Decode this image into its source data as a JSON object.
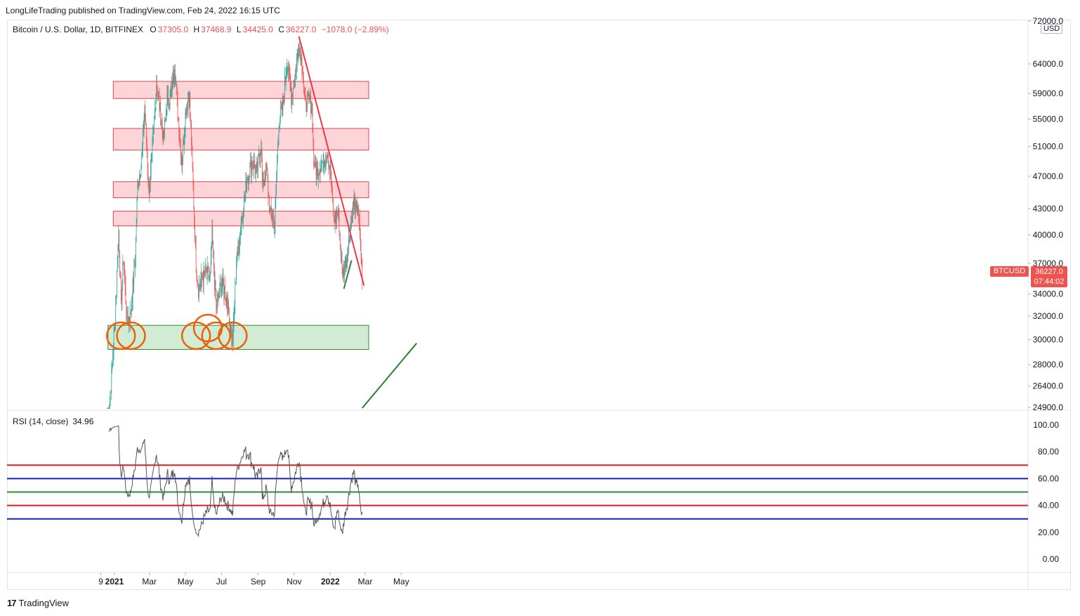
{
  "header": {
    "published": "LongLifeTrading published on TradingView.com, Feb 24, 2022 16:15 UTC"
  },
  "legend": {
    "symbol": "Bitcoin / U.S. Dollar, 1D, BITFINEX",
    "o_label": "O",
    "o": "37305.0",
    "h_label": "H",
    "h": "37468.9",
    "l_label": "L",
    "l": "34425.0",
    "c_label": "C",
    "c": "36227.0",
    "change": "−1078.0 (−2.89%)"
  },
  "currency": "USD",
  "price_badge": {
    "symbol": "BTCUSD",
    "price": "36227.0",
    "countdown": "07:44:02"
  },
  "rsi": {
    "label": "RSI (14, close)",
    "value": "34.96"
  },
  "brand": {
    "name": "TradingView",
    "logo": "17"
  },
  "colors": {
    "up": "#26a69a",
    "down": "#ef5350",
    "resistance_fill": "#fdd5d8",
    "resistance_border": "#e04452",
    "support_fill": "#d2ecd3",
    "support_border": "#3b8a3e",
    "trendline_down": "#f23645",
    "trendline_up": "#2e7d32",
    "circle": "#e8620c",
    "rsi_line": "#555555",
    "level_red": "#e61c1c",
    "level_blue": "#1622b5",
    "level_green": "#2e8b2e"
  },
  "chart_data": {
    "type": "candlestick",
    "title": "Bitcoin / U.S. Dollar, 1D, BITFINEX",
    "y_axis": {
      "scale": "log",
      "ticks": [
        "72000.0",
        "64000.0",
        "59000.0",
        "55000.0",
        "51000.0",
        "47000.0",
        "43000.0",
        "40000.0",
        "37000.0",
        "34000.0",
        "32000.0",
        "30000.0",
        "28000.0",
        "26400.0",
        "24900.0"
      ]
    },
    "x_axis": {
      "ticks": [
        "9",
        "2021",
        "Mar",
        "May",
        "Jul",
        "Sep",
        "Nov",
        "2022",
        "Mar",
        "May"
      ]
    },
    "price_path_keypoints": [
      {
        "date": "2020-12-20",
        "price": 23500
      },
      {
        "date": "2020-12-27",
        "price": 27000
      },
      {
        "date": "2021-01-03",
        "price": 33000
      },
      {
        "date": "2021-01-08",
        "price": 40500
      },
      {
        "date": "2021-01-12",
        "price": 33000
      },
      {
        "date": "2021-01-16",
        "price": 37500
      },
      {
        "date": "2021-01-22",
        "price": 31800
      },
      {
        "date": "2021-01-28",
        "price": 32000
      },
      {
        "date": "2021-02-05",
        "price": 37500
      },
      {
        "date": "2021-02-09",
        "price": 46000
      },
      {
        "date": "2021-02-16",
        "price": 49000
      },
      {
        "date": "2021-02-21",
        "price": 57000
      },
      {
        "date": "2021-02-28",
        "price": 45000
      },
      {
        "date": "2021-03-05",
        "price": 49000
      },
      {
        "date": "2021-03-13",
        "price": 61000
      },
      {
        "date": "2021-03-25",
        "price": 52000
      },
      {
        "date": "2021-04-01",
        "price": 59000
      },
      {
        "date": "2021-04-05",
        "price": 58000
      },
      {
        "date": "2021-04-13",
        "price": 63500
      },
      {
        "date": "2021-04-18",
        "price": 56000
      },
      {
        "date": "2021-04-25",
        "price": 49000
      },
      {
        "date": "2021-05-02",
        "price": 57000
      },
      {
        "date": "2021-05-08",
        "price": 58500
      },
      {
        "date": "2021-05-12",
        "price": 49500
      },
      {
        "date": "2021-05-19",
        "price": 37000
      },
      {
        "date": "2021-05-23",
        "price": 34500
      },
      {
        "date": "2021-05-30",
        "price": 35500
      },
      {
        "date": "2021-06-06",
        "price": 36000
      },
      {
        "date": "2021-06-12",
        "price": 35500
      },
      {
        "date": "2021-06-15",
        "price": 40000
      },
      {
        "date": "2021-06-22",
        "price": 32500
      },
      {
        "date": "2021-06-30",
        "price": 35000
      },
      {
        "date": "2021-07-06",
        "price": 34500
      },
      {
        "date": "2021-07-15",
        "price": 31700
      },
      {
        "date": "2021-07-20",
        "price": 29800
      },
      {
        "date": "2021-07-26",
        "price": 37000
      },
      {
        "date": "2021-08-01",
        "price": 40000
      },
      {
        "date": "2021-08-08",
        "price": 44000
      },
      {
        "date": "2021-08-14",
        "price": 47000
      },
      {
        "date": "2021-08-22",
        "price": 49000
      },
      {
        "date": "2021-08-30",
        "price": 47500
      },
      {
        "date": "2021-09-06",
        "price": 51800
      },
      {
        "date": "2021-09-08",
        "price": 46000
      },
      {
        "date": "2021-09-15",
        "price": 48000
      },
      {
        "date": "2021-09-21",
        "price": 42500
      },
      {
        "date": "2021-09-29",
        "price": 41500
      },
      {
        "date": "2021-10-06",
        "price": 55000
      },
      {
        "date": "2021-10-12",
        "price": 56500
      },
      {
        "date": "2021-10-20",
        "price": 65000
      },
      {
        "date": "2021-10-27",
        "price": 58500
      },
      {
        "date": "2021-11-01",
        "price": 61000
      },
      {
        "date": "2021-11-09",
        "price": 67500
      },
      {
        "date": "2021-11-15",
        "price": 63500
      },
      {
        "date": "2021-11-19",
        "price": 57000
      },
      {
        "date": "2021-11-25",
        "price": 58000
      },
      {
        "date": "2021-12-01",
        "price": 57000
      },
      {
        "date": "2021-12-04",
        "price": 49000
      },
      {
        "date": "2021-12-10",
        "price": 47500
      },
      {
        "date": "2021-12-15",
        "price": 48500
      },
      {
        "date": "2021-12-21",
        "price": 49000
      },
      {
        "date": "2021-12-27",
        "price": 50500
      },
      {
        "date": "2022-01-01",
        "price": 47500
      },
      {
        "date": "2022-01-07",
        "price": 41500
      },
      {
        "date": "2022-01-14",
        "price": 43000
      },
      {
        "date": "2022-01-21",
        "price": 36000
      },
      {
        "date": "2022-01-24",
        "price": 36500
      },
      {
        "date": "2022-01-31",
        "price": 38500
      },
      {
        "date": "2022-02-05",
        "price": 41500
      },
      {
        "date": "2022-02-10",
        "price": 44000
      },
      {
        "date": "2022-02-14",
        "price": 42500
      },
      {
        "date": "2022-02-17",
        "price": 43500
      },
      {
        "date": "2022-02-21",
        "price": 38500
      },
      {
        "date": "2022-02-24",
        "price": 36227
      }
    ],
    "zones": [
      {
        "kind": "resistance",
        "low": 58200,
        "high": 61000
      },
      {
        "kind": "resistance",
        "low": 50500,
        "high": 53600
      },
      {
        "kind": "resistance",
        "low": 44300,
        "high": 46300
      },
      {
        "kind": "resistance",
        "low": 41000,
        "high": 42700
      },
      {
        "kind": "support",
        "low": 29200,
        "high": 31200
      }
    ],
    "trendlines": [
      {
        "kind": "down",
        "from": {
          "date": "2021-11-09",
          "price": 69000
        },
        "to": {
          "date": "2022-02-27",
          "price": 34800
        }
      },
      {
        "kind": "up",
        "from": {
          "date": "2022-01-24",
          "price": 34500
        },
        "to": {
          "date": "2022-02-06",
          "price": 37300
        }
      },
      {
        "kind": "up",
        "from": {
          "date": "2022-02-24",
          "price": 24850
        },
        "to": {
          "date": "2022-05-27",
          "price": 29700
        }
      }
    ],
    "circled_dates": [
      "2021-01-12",
      "2021-01-23",
      "2021-05-19",
      "2021-06-08",
      "2021-06-22",
      "2021-07-20"
    ],
    "rsi": {
      "levels": [
        {
          "value": 70,
          "color": "red"
        },
        {
          "value": 60,
          "color": "blue"
        },
        {
          "value": 50,
          "color": "green"
        },
        {
          "value": 40,
          "color": "red"
        },
        {
          "value": 30,
          "color": "blue"
        }
      ],
      "ticks": [
        "100.00",
        "80.00",
        "60.00",
        "40.00",
        "20.00",
        "0.00"
      ],
      "last": 34.96
    }
  }
}
